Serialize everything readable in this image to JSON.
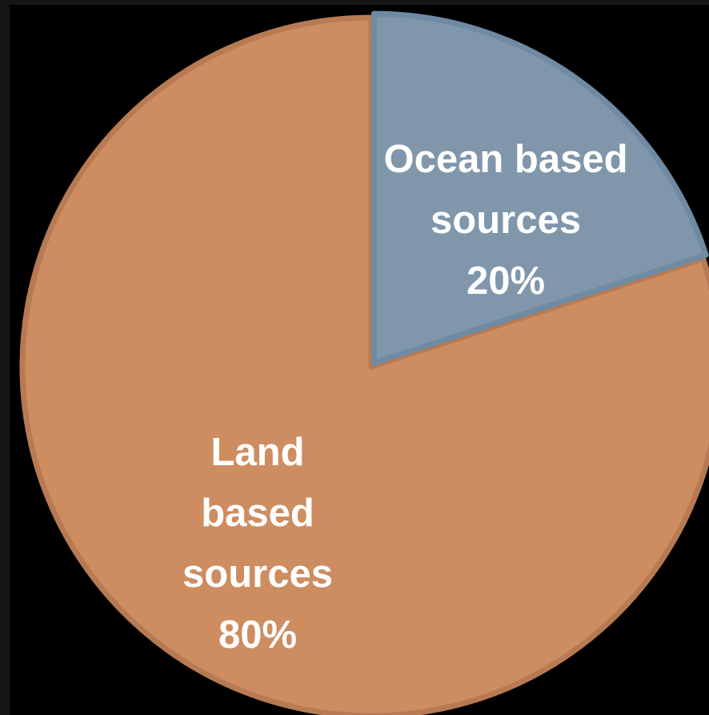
{
  "chart_data": {
    "type": "pie",
    "start_angle_deg": 0,
    "direction": "clockwise",
    "slices": [
      {
        "label_lines": [
          "Ocean based",
          "sources",
          "20%"
        ],
        "value": 20,
        "color": "#7f96ab",
        "edge_color": "#6f8aa3"
      },
      {
        "label_lines": [
          "Land",
          "based",
          "sources",
          "80%"
        ],
        "value": 80,
        "color": "#cd8d61",
        "edge_color": "#b87a52"
      }
    ]
  },
  "colors": {
    "background": "#000000",
    "frame": "#161616"
  }
}
